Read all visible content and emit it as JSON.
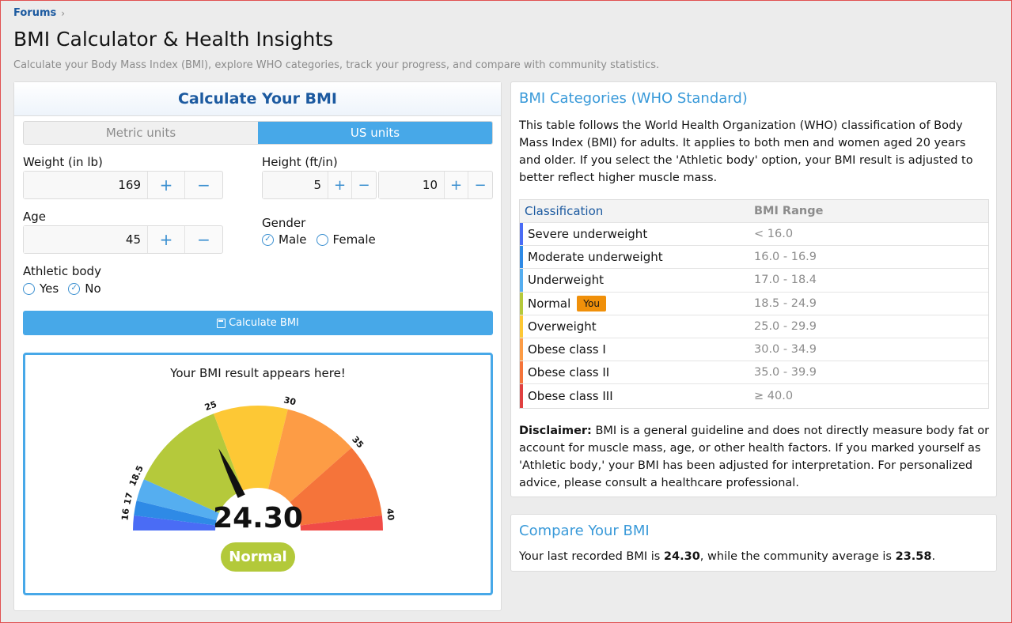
{
  "breadcrumb": {
    "forums": "Forums"
  },
  "page": {
    "title": "BMI Calculator & Health Insights",
    "description": "Calculate your Body Mass Index (BMI), explore WHO categories, track your progress, and compare with community statistics."
  },
  "calculator": {
    "header": "Calculate Your BMI",
    "tabs": {
      "metric": "Metric units",
      "us": "US units",
      "active": "us"
    },
    "weight": {
      "label": "Weight (in lb)",
      "value": "169"
    },
    "height": {
      "label": "Height (ft/in)",
      "feet": "5",
      "inches": "10"
    },
    "age": {
      "label": "Age",
      "value": "45"
    },
    "gender": {
      "label": "Gender",
      "male": "Male",
      "female": "Female",
      "selected": "male"
    },
    "athletic": {
      "label": "Athletic body",
      "yes": "Yes",
      "no": "No",
      "selected": "no"
    },
    "plus": "+",
    "minus": "−",
    "calculate_label": "Calculate BMI",
    "result": {
      "prompt": "Your BMI result appears here!",
      "value": "24.30",
      "category": "Normal",
      "bmi": 24.3
    }
  },
  "gauge": {
    "min": 15,
    "max": 40,
    "segments": [
      {
        "from": 15,
        "to": 16,
        "color": "#4a6cf5"
      },
      {
        "from": 16,
        "to": 17,
        "color": "#2e8ae6"
      },
      {
        "from": 17,
        "to": 18.5,
        "color": "#55aef0"
      },
      {
        "from": 18.5,
        "to": 25,
        "color": "#b5c93b"
      },
      {
        "from": 25,
        "to": 30,
        "color": "#fdc835"
      },
      {
        "from": 30,
        "to": 35,
        "color": "#fd9c45"
      },
      {
        "from": 35,
        "to": 40,
        "color": "#f5743a"
      },
      {
        "from": 40,
        "to": 41,
        "color": "#f04b47"
      }
    ],
    "ticks": [
      "16",
      "17",
      "18.5",
      "25",
      "30",
      "35",
      "40"
    ],
    "tick_values": [
      16,
      17,
      18.5,
      25,
      30,
      35,
      40
    ]
  },
  "categories": {
    "title": "BMI Categories (WHO Standard)",
    "intro": "This table follows the World Health Organization (WHO) classification of Body Mass Index (BMI) for adults. It applies to both men and women aged 20 years and older. If you select the 'Athletic body' option, your BMI result is adjusted to better reflect higher muscle mass.",
    "headers": {
      "classification": "Classification",
      "range": "BMI Range"
    },
    "rows": [
      {
        "name": "Severe underweight",
        "range": "< 16.0",
        "color": "#4a6cf5"
      },
      {
        "name": "Moderate underweight",
        "range": "16.0 - 16.9",
        "color": "#2e8ae6"
      },
      {
        "name": "Underweight",
        "range": "17.0 - 18.4",
        "color": "#55aef0"
      },
      {
        "name": "Normal",
        "range": "18.5 - 24.9",
        "color": "#b5c93b",
        "badge": "You"
      },
      {
        "name": "Overweight",
        "range": "25.0 - 29.9",
        "color": "#fdc835"
      },
      {
        "name": "Obese class I",
        "range": "30.0 - 34.9",
        "color": "#fd9c45"
      },
      {
        "name": "Obese class II",
        "range": "35.0 - 39.9",
        "color": "#f5743a"
      },
      {
        "name": "Obese class III",
        "range": "≥ 40.0",
        "color": "#e04040"
      }
    ],
    "disclaimer_label": "Disclaimer:",
    "disclaimer": " BMI is a general guideline and does not directly measure body fat or account for muscle mass, age, or other health factors. If you marked yourself as 'Athletic body,' your BMI has been adjusted for interpretation. For personalized advice, please consult a healthcare professional."
  },
  "compare": {
    "title": "Compare Your BMI",
    "prefix": "Your last recorded BMI is ",
    "last": "24.30",
    "middle": ", while the community average is ",
    "average": "23.58",
    "suffix": "."
  }
}
